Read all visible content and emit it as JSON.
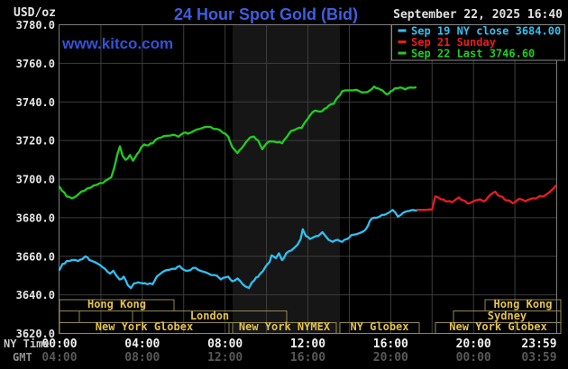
{
  "header": {
    "units_label": "USD/oz",
    "datetime": "September 22, 2025 16:40",
    "watermark": "www.kitco.com"
  },
  "legend": {
    "items": [
      {
        "label": "Sep 19 NY close 3684.00",
        "color": "#2fc1f2"
      },
      {
        "label": "Sep 21 Sunday",
        "color": "#e81d1d"
      },
      {
        "label": "Sep 22 Last 3746.60",
        "color": "#21cd21"
      }
    ]
  },
  "axes": {
    "y_ticks": [
      "3780.0",
      "3760.0",
      "3740.0",
      "3720.0",
      "3700.0",
      "3680.0",
      "3660.0",
      "3640.0",
      "3620.0"
    ],
    "y_values": [
      3780,
      3760,
      3740,
      3720,
      3700,
      3680,
      3660,
      3640,
      3620
    ],
    "x_rows": [
      {
        "label": "NY Time",
        "color": "#c8c8c8",
        "tick_color": "#f0f0f0"
      },
      {
        "label": "GMT",
        "color": "#909090",
        "tick_color": "#585858"
      }
    ],
    "x_ticks": [
      {
        "h": 0,
        "ny": "00:00",
        "gmt": "04:00"
      },
      {
        "h": 4,
        "ny": "04:00",
        "gmt": "08:00"
      },
      {
        "h": 8,
        "ny": "08:00",
        "gmt": "12:00"
      },
      {
        "h": 12,
        "ny": "12:00",
        "gmt": "16:00"
      },
      {
        "h": 16,
        "ny": "16:00",
        "gmt": "20:00"
      },
      {
        "h": 20,
        "ny": "20:00",
        "gmt": "00:00"
      },
      {
        "h": 23.983,
        "ny": "23:59",
        "gmt": "03:59"
      }
    ]
  },
  "sessions": {
    "rows": [
      {
        "boxes": [
          {
            "from": 0,
            "to": 5.532,
            "label": "Hong Kong"
          },
          {
            "from": 20.56,
            "to": 24.217,
            "label": "Hong Kong"
          }
        ]
      },
      {
        "boxes": [
          {
            "from": 0,
            "to": 0.958,
            "label": ""
          },
          {
            "from": 0.958,
            "to": 3.528,
            "label": ""
          },
          {
            "from": 3.528,
            "to": 10.976,
            "label": "London"
          },
          {
            "from": 19.034,
            "to": 24.217,
            "label": "Sydney"
          }
        ]
      },
      {
        "boxes": [
          {
            "from": 0,
            "to": 8.188,
            "label": "New York Globex"
          },
          {
            "from": 8.363,
            "to": 13.372,
            "label": "New York NYMEX"
          },
          {
            "from": 13.546,
            "to": 17.379,
            "label": "NY Globex"
          },
          {
            "from": 18.163,
            "to": 24.217,
            "label": "New York Globex"
          }
        ]
      }
    ]
  },
  "chart_data": {
    "type": "line",
    "title": "24 Hour Spot Gold (Bid)",
    "x_unit": "NY time, hours",
    "x_range": [
      0,
      24
    ],
    "y_range": [
      3620,
      3780
    ],
    "y_tick_step": 20,
    "grid": true,
    "legend_position": "top-right",
    "shaded_band": {
      "from": 8.363,
      "to": 13.546
    },
    "series": [
      {
        "name": "Sep 19 NY close",
        "close": 3684.0,
        "color": "#2fc1f2",
        "points": [
          [
            0,
            3653
          ],
          [
            0.15,
            3656
          ],
          [
            0.35,
            3657.5
          ],
          [
            0.6,
            3658
          ],
          [
            0.9,
            3657.5
          ],
          [
            1.1,
            3658.5
          ],
          [
            1.25,
            3660
          ],
          [
            1.45,
            3658
          ],
          [
            1.7,
            3657
          ],
          [
            1.95,
            3655.5
          ],
          [
            2.2,
            3653.5
          ],
          [
            2.45,
            3651
          ],
          [
            2.6,
            3652.5
          ],
          [
            2.9,
            3648
          ],
          [
            3.1,
            3649.5
          ],
          [
            3.3,
            3645
          ],
          [
            3.45,
            3643.5
          ],
          [
            3.6,
            3646
          ],
          [
            3.8,
            3646.5
          ],
          [
            4.0,
            3646
          ],
          [
            4.25,
            3645.5
          ],
          [
            4.5,
            3645.5
          ],
          [
            4.7,
            3649.5
          ],
          [
            5.0,
            3652
          ],
          [
            5.3,
            3653
          ],
          [
            5.6,
            3653.5
          ],
          [
            5.8,
            3655
          ],
          [
            6.0,
            3653
          ],
          [
            6.2,
            3652.5
          ],
          [
            6.45,
            3654
          ],
          [
            6.7,
            3653
          ],
          [
            6.95,
            3652
          ],
          [
            7.2,
            3651
          ],
          [
            7.6,
            3650
          ],
          [
            7.8,
            3648
          ],
          [
            8.0,
            3649
          ],
          [
            8.15,
            3649.5
          ],
          [
            8.35,
            3647
          ],
          [
            8.6,
            3648.5
          ],
          [
            8.85,
            3645.5
          ],
          [
            9.05,
            3644
          ],
          [
            9.15,
            3643.6
          ],
          [
            9.3,
            3646.5
          ],
          [
            9.5,
            3649
          ],
          [
            9.7,
            3651
          ],
          [
            9.95,
            3654.5
          ],
          [
            10.15,
            3657
          ],
          [
            10.25,
            3660.5
          ],
          [
            10.45,
            3659
          ],
          [
            10.6,
            3661.5
          ],
          [
            10.75,
            3658
          ],
          [
            10.95,
            3661.5
          ],
          [
            11.2,
            3663
          ],
          [
            11.35,
            3664.5
          ],
          [
            11.5,
            3666
          ],
          [
            11.65,
            3669
          ],
          [
            11.75,
            3674
          ],
          [
            11.9,
            3670.5
          ],
          [
            12.1,
            3669
          ],
          [
            12.3,
            3670
          ],
          [
            12.5,
            3670.5
          ],
          [
            12.7,
            3672.5
          ],
          [
            12.85,
            3670.5
          ],
          [
            13.0,
            3668.5
          ],
          [
            13.2,
            3667.5
          ],
          [
            13.45,
            3668.5
          ],
          [
            13.65,
            3667.5
          ],
          [
            13.9,
            3669
          ],
          [
            14.1,
            3671
          ],
          [
            14.35,
            3671.5
          ],
          [
            14.6,
            3672.5
          ],
          [
            14.8,
            3674
          ],
          [
            15.0,
            3678.5
          ],
          [
            15.2,
            3680
          ],
          [
            15.45,
            3680.5
          ],
          [
            15.7,
            3681.5
          ],
          [
            15.9,
            3682.5
          ],
          [
            16.1,
            3684
          ],
          [
            16.35,
            3680.5
          ],
          [
            16.5,
            3681.5
          ],
          [
            16.7,
            3683
          ],
          [
            16.9,
            3683.5
          ],
          [
            17.1,
            3684
          ],
          [
            17.3,
            3684
          ]
        ]
      },
      {
        "name": "Sep 21 Sunday",
        "color": "#e81d1d",
        "points": [
          [
            17.3,
            3684
          ],
          [
            17.7,
            3684
          ],
          [
            18.0,
            3684.2
          ],
          [
            18.15,
            3691
          ],
          [
            18.35,
            3690
          ],
          [
            18.55,
            3689.5
          ],
          [
            18.75,
            3688.5
          ],
          [
            18.95,
            3688
          ],
          [
            19.15,
            3689.5
          ],
          [
            19.3,
            3690.5
          ],
          [
            19.5,
            3689
          ],
          [
            19.7,
            3687.5
          ],
          [
            19.9,
            3688
          ],
          [
            20.1,
            3689
          ],
          [
            20.3,
            3689.5
          ],
          [
            20.5,
            3688.5
          ],
          [
            20.7,
            3690.5
          ],
          [
            20.9,
            3692.5
          ],
          [
            21.05,
            3693.5
          ],
          [
            21.3,
            3691
          ],
          [
            21.5,
            3689.5
          ],
          [
            21.7,
            3689
          ],
          [
            21.9,
            3687.5
          ],
          [
            22.1,
            3689
          ],
          [
            22.3,
            3689.5
          ],
          [
            22.5,
            3688.5
          ],
          [
            22.7,
            3689.5
          ],
          [
            22.9,
            3690
          ],
          [
            23.1,
            3690.5
          ],
          [
            23.3,
            3691
          ],
          [
            23.5,
            3692
          ],
          [
            23.7,
            3693.5
          ],
          [
            23.85,
            3695
          ],
          [
            23.98,
            3696.5
          ]
        ]
      },
      {
        "name": "Sep 22",
        "last": 3746.6,
        "color": "#21cd21",
        "points": [
          [
            0,
            3696
          ],
          [
            0.35,
            3691
          ],
          [
            0.6,
            3690
          ],
          [
            0.9,
            3692
          ],
          [
            1.2,
            3694
          ],
          [
            1.5,
            3695.5
          ],
          [
            1.8,
            3697
          ],
          [
            2.1,
            3698
          ],
          [
            2.35,
            3700
          ],
          [
            2.5,
            3701
          ],
          [
            2.65,
            3706
          ],
          [
            2.8,
            3713
          ],
          [
            2.92,
            3717
          ],
          [
            3.05,
            3712
          ],
          [
            3.2,
            3710
          ],
          [
            3.4,
            3712.5
          ],
          [
            3.55,
            3709.5
          ],
          [
            3.75,
            3713
          ],
          [
            3.95,
            3716.5
          ],
          [
            4.1,
            3718
          ],
          [
            4.3,
            3717.5
          ],
          [
            4.5,
            3718.5
          ],
          [
            4.65,
            3720.5
          ],
          [
            4.9,
            3721.5
          ],
          [
            5.2,
            3722.5
          ],
          [
            5.5,
            3723
          ],
          [
            5.75,
            3722
          ],
          [
            6.0,
            3724
          ],
          [
            6.2,
            3723.5
          ],
          [
            6.5,
            3725
          ],
          [
            6.9,
            3726.5
          ],
          [
            7.3,
            3727
          ],
          [
            7.6,
            3726
          ],
          [
            7.9,
            3724
          ],
          [
            8.15,
            3722
          ],
          [
            8.35,
            3716.5
          ],
          [
            8.6,
            3713.5
          ],
          [
            8.8,
            3716
          ],
          [
            9.0,
            3719
          ],
          [
            9.2,
            3721.5
          ],
          [
            9.4,
            3722
          ],
          [
            9.6,
            3720
          ],
          [
            9.8,
            3715.5
          ],
          [
            10.0,
            3718.5
          ],
          [
            10.25,
            3719.5
          ],
          [
            10.5,
            3719
          ],
          [
            10.75,
            3718.5
          ],
          [
            11.0,
            3722
          ],
          [
            11.2,
            3725
          ],
          [
            11.45,
            3726
          ],
          [
            11.7,
            3726.5
          ],
          [
            11.9,
            3730
          ],
          [
            12.1,
            3733
          ],
          [
            12.35,
            3735.5
          ],
          [
            12.6,
            3735
          ],
          [
            12.8,
            3736.5
          ],
          [
            13.0,
            3738
          ],
          [
            13.25,
            3739
          ],
          [
            13.45,
            3742.5
          ],
          [
            13.65,
            3745.5
          ],
          [
            13.9,
            3746
          ],
          [
            14.2,
            3746
          ],
          [
            14.5,
            3745.5
          ],
          [
            14.75,
            3745
          ],
          [
            15.0,
            3746
          ],
          [
            15.2,
            3748
          ],
          [
            15.4,
            3747
          ],
          [
            15.6,
            3746
          ],
          [
            15.8,
            3744
          ],
          [
            16.0,
            3745.5
          ],
          [
            16.2,
            3747
          ],
          [
            16.45,
            3747.5
          ],
          [
            16.7,
            3746.5
          ],
          [
            16.95,
            3747.5
          ],
          [
            17.2,
            3747.5
          ]
        ]
      }
    ]
  },
  "colors": {
    "background": "#000000",
    "grid": "#3d3d3d",
    "frame": "#7e7e7e",
    "band": "#161616",
    "title": "#3e5ede",
    "watermark": "#3353d8",
    "axis_text": "#e6e6e6",
    "date_text": "#e0e0e0",
    "session_border": "#94884f",
    "session_text": "#e3c24f",
    "legend_border": "#8a8a8a"
  }
}
